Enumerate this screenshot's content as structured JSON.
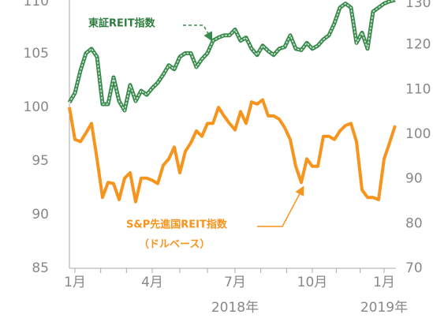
{
  "chart_data": {
    "type": "line",
    "categories": [
      null,
      "1月",
      null,
      null,
      null,
      null,
      null,
      null,
      null,
      null,
      null,
      null,
      null,
      null,
      null,
      "4月",
      null,
      null,
      null,
      null,
      null,
      null,
      null,
      null,
      null,
      null,
      null,
      null,
      null,
      null,
      "7月",
      null,
      null,
      null,
      null,
      null,
      null,
      null,
      null,
      null,
      null,
      null,
      null,
      null,
      "10月",
      null,
      null,
      null,
      null,
      null,
      null,
      null,
      null,
      null,
      null,
      null,
      null,
      "1月",
      null,
      null
    ],
    "year_labels": [
      "2018年",
      "2019年"
    ],
    "series": [
      {
        "name": "S&P先進国REIT指数",
        "name_note": "（ドルベース）",
        "color": "#f7941d",
        "axis": "y",
        "values": [
          100.0,
          97.0,
          96.8,
          97.6,
          98.5,
          95.2,
          91.6,
          93.0,
          92.9,
          91.4,
          93.4,
          93.9,
          91.2,
          93.4,
          93.4,
          93.2,
          92.9,
          94.6,
          95.2,
          96.3,
          93.9,
          95.9,
          96.7,
          97.8,
          97.3,
          98.5,
          98.5,
          100.0,
          99.2,
          98.5,
          97.9,
          99.6,
          98.5,
          100.5,
          100.3,
          100.7,
          99.2,
          99.2,
          98.9,
          98.1,
          97.0,
          94.5,
          93.0,
          95.2,
          94.5,
          94.5,
          97.3,
          97.3,
          97.0,
          97.8,
          98.3,
          98.5,
          96.8,
          92.3,
          91.6,
          91.6,
          91.4,
          95.2,
          96.7,
          98.3
        ]
      },
      {
        "name": "東証REIT指数",
        "color": "#3a8a4e",
        "axis": "y2",
        "values": [
          107.1,
          109.2,
          114.2,
          118.1,
          119.1,
          117.3,
          106.7,
          106.7,
          112.7,
          107.4,
          105.3,
          111.0,
          107.4,
          109.7,
          108.8,
          110.3,
          111.5,
          113.3,
          115.4,
          114.5,
          117.3,
          118.1,
          118.1,
          115.0,
          116.8,
          118.1,
          120.9,
          121.6,
          122.1,
          122.1,
          123.4,
          120.9,
          121.6,
          119.1,
          117.7,
          119.8,
          118.6,
          117.7,
          119.1,
          119.5,
          122.1,
          119.1,
          118.8,
          120.4,
          119.1,
          119.8,
          121.2,
          122.1,
          124.8,
          128.3,
          129.2,
          128.3,
          120.4,
          122.7,
          119.1,
          127.4,
          128.3,
          129.2,
          129.7,
          130.0
        ]
      }
    ],
    "ylim": [
      85,
      110
    ],
    "yticks": [
      85,
      90,
      95,
      100,
      105,
      110
    ],
    "y2lim": [
      70,
      130
    ],
    "y2ticks": [
      70,
      80,
      90,
      100,
      110,
      120,
      130
    ]
  }
}
